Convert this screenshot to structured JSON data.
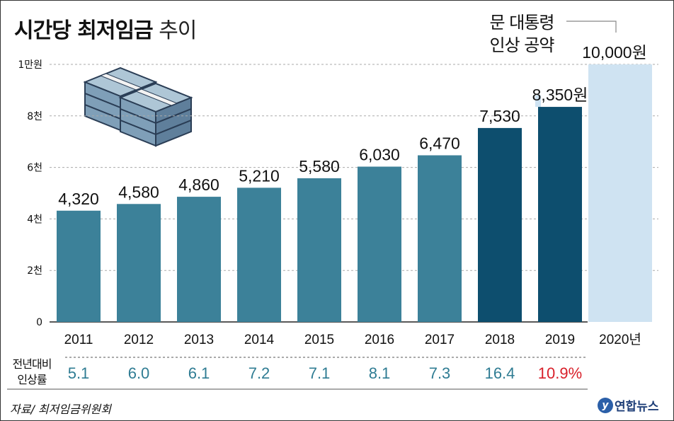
{
  "title": {
    "bold": "시간당 최저임금",
    "light": "추이"
  },
  "annotation": {
    "line1": "문 대통령",
    "line2": "인상 공약"
  },
  "chart_data": {
    "type": "bar",
    "title": "시간당 최저임금 추이",
    "categories": [
      "2011",
      "2012",
      "2013",
      "2014",
      "2015",
      "2016",
      "2017",
      "2018",
      "2019",
      "2020년"
    ],
    "values": [
      4320,
      4580,
      4860,
      5210,
      5580,
      6030,
      6470,
      7530,
      8350,
      10000
    ],
    "value_labels": [
      "4,320",
      "4,580",
      "4,860",
      "5,210",
      "5,580",
      "6,030",
      "6,470",
      "7,530",
      "8,350원",
      "10,000원"
    ],
    "yticks": [
      {
        "value": 0,
        "label": "0"
      },
      {
        "value": 2000,
        "label": "2천"
      },
      {
        "value": 4000,
        "label": "4천"
      },
      {
        "value": 6000,
        "label": "6천"
      },
      {
        "value": 8000,
        "label": "8천"
      },
      {
        "value": 10000,
        "label": "1만원"
      }
    ],
    "ylim": [
      0,
      10000
    ],
    "grid": true,
    "colors": {
      "normal": "#3c8199",
      "recent": "#0d4e6e",
      "pledge": "#cfe3f2",
      "pledge_label": "#9ec3e0",
      "grid": "#aaaaaa"
    },
    "growth_rate": {
      "label": "전년대비 인상률",
      "values": [
        "5.1",
        "6.0",
        "6.1",
        "7.2",
        "7.1",
        "8.1",
        "7.3",
        "16.4",
        "10.9%"
      ],
      "colors": {
        "normal": "#2f7c93",
        "highlight": "#d8202a"
      }
    }
  },
  "growth_row_label": {
    "line1": "전년대비",
    "line2": "인상률"
  },
  "source": "자료/ 최저임금위원회",
  "logo": {
    "mark": "y",
    "name": "연합뉴스"
  }
}
